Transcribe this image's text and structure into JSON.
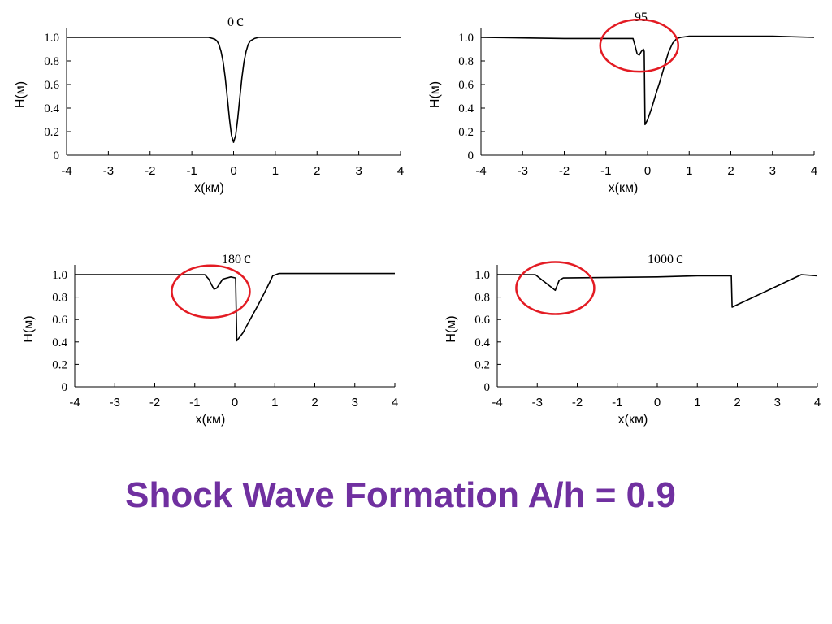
{
  "title": "Shock Wave Formation A/h = 0.9",
  "colors": {
    "title": "#7030a0",
    "line": "#000000",
    "highlight_circle": "#e31b23"
  },
  "chart_data": [
    {
      "type": "line",
      "time_number": "0",
      "time_unit": "c",
      "xlabel": "x(км)",
      "ylabel": "H(м)",
      "xlim": [
        -4,
        4
      ],
      "ylim": [
        0,
        1.0
      ],
      "xticks": [
        "-4",
        "-3",
        "-2",
        "-1",
        "0",
        "1",
        "2",
        "3",
        "4"
      ],
      "yticks": [
        "0",
        "0.2",
        "0.4",
        "0.6",
        "0.8",
        "1.0"
      ],
      "grid": false,
      "highlight": false,
      "series": [
        {
          "x": [
            -4,
            -3,
            -2,
            -1,
            -0.6,
            -0.5,
            -0.45,
            -0.4,
            -0.35,
            -0.3,
            -0.25,
            -0.2,
            -0.15,
            -0.1,
            -0.05,
            0,
            0.05,
            0.1,
            0.15,
            0.2,
            0.25,
            0.3,
            0.35,
            0.4,
            0.5,
            0.6,
            1,
            2,
            3,
            4
          ],
          "y": [
            1.0,
            1.0,
            1.0,
            1.0,
            1.0,
            0.99,
            0.985,
            0.97,
            0.94,
            0.88,
            0.79,
            0.66,
            0.49,
            0.31,
            0.17,
            0.11,
            0.17,
            0.31,
            0.49,
            0.66,
            0.79,
            0.88,
            0.94,
            0.97,
            0.99,
            1.0,
            1.0,
            1.0,
            1.0,
            1.0
          ]
        }
      ]
    },
    {
      "type": "line",
      "time_number": "95",
      "time_unit": "",
      "xlabel": "x(км)",
      "ylabel": "H(м)",
      "xlim": [
        -4,
        4
      ],
      "ylim": [
        0,
        1.0
      ],
      "xticks": [
        "-4",
        "-3",
        "-2",
        "-1",
        "0",
        "1",
        "2",
        "3",
        "4"
      ],
      "yticks": [
        "0",
        "0.2",
        "0.4",
        "0.6",
        "0.8",
        "1.0"
      ],
      "grid": false,
      "highlight": true,
      "highlight_center": [
        -0.2,
        0.93
      ],
      "series": [
        {
          "x": [
            -4,
            -3,
            -2,
            -1,
            -0.35,
            -0.3,
            -0.25,
            -0.2,
            -0.15,
            -0.1,
            -0.08,
            -0.06,
            0.0,
            0.1,
            0.2,
            0.3,
            0.4,
            0.5,
            0.6,
            0.7,
            0.8,
            1,
            2,
            3,
            4
          ],
          "y": [
            1.0,
            0.995,
            0.99,
            0.99,
            0.99,
            0.93,
            0.86,
            0.85,
            0.88,
            0.9,
            0.88,
            0.26,
            0.3,
            0.4,
            0.52,
            0.63,
            0.75,
            0.87,
            0.95,
            0.99,
            1.0,
            1.01,
            1.01,
            1.01,
            1.0
          ]
        }
      ]
    },
    {
      "type": "line",
      "time_number": "180",
      "time_unit": "c",
      "xlabel": "x(км)",
      "ylabel": "H(м)",
      "xlim": [
        -4,
        4
      ],
      "ylim": [
        0,
        1.0
      ],
      "xticks": [
        "-4",
        "-3",
        "-2",
        "-1",
        "0",
        "1",
        "2",
        "3",
        "4"
      ],
      "yticks": [
        "0",
        "0.2",
        "0.4",
        "0.6",
        "0.8",
        "1.0"
      ],
      "grid": false,
      "highlight": true,
      "highlight_center": [
        -0.6,
        0.85
      ],
      "series": [
        {
          "x": [
            -4,
            -3,
            -2,
            -1,
            -0.75,
            -0.65,
            -0.58,
            -0.52,
            -0.45,
            -0.3,
            -0.1,
            0.02,
            0.05,
            0.2,
            0.4,
            0.6,
            0.8,
            0.95,
            1.1,
            2,
            3,
            4
          ],
          "y": [
            1.0,
            1.0,
            1.0,
            1.0,
            1.0,
            0.96,
            0.91,
            0.87,
            0.88,
            0.96,
            0.98,
            0.97,
            0.41,
            0.48,
            0.61,
            0.74,
            0.88,
            0.99,
            1.01,
            1.01,
            1.01,
            1.01
          ]
        }
      ]
    },
    {
      "type": "line",
      "time_number": "1000",
      "time_unit": "c",
      "xlabel": "x(км)",
      "ylabel": "H(м)",
      "xlim": [
        -4,
        4
      ],
      "ylim": [
        0,
        1.0
      ],
      "xticks": [
        "-4",
        "-3",
        "-2",
        "-1",
        "0",
        "1",
        "2",
        "3",
        "4"
      ],
      "yticks": [
        "0",
        "0.2",
        "0.4",
        "0.6",
        "0.8",
        "1.0"
      ],
      "grid": false,
      "highlight": true,
      "highlight_center": [
        -2.55,
        0.88
      ],
      "series": [
        {
          "x": [
            -4,
            -3.05,
            -2.55,
            -2.45,
            -2.35,
            0,
            1.0,
            1.85,
            1.87,
            3.6,
            4
          ],
          "y": [
            1.0,
            1.0,
            0.86,
            0.95,
            0.97,
            0.98,
            0.99,
            0.99,
            0.71,
            1.0,
            0.99
          ]
        }
      ]
    }
  ]
}
